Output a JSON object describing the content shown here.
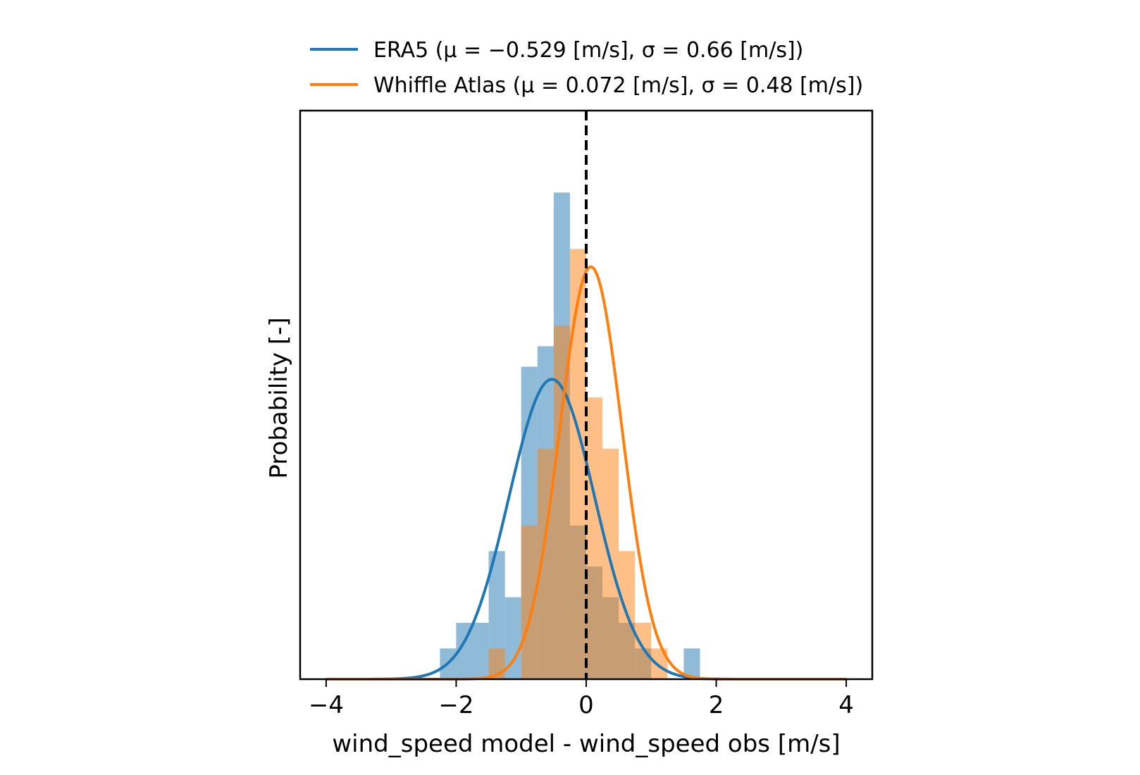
{
  "chart_data": {
    "type": "bar",
    "subtype": "histogram-with-normal-fit",
    "xlabel": "wind_speed model - wind_speed obs [m/s]",
    "ylabel": "Probability [-]",
    "xlim": [
      -4.4,
      4.4
    ],
    "ylim": [
      0,
      1.11
    ],
    "xticks": [
      -4,
      -2,
      0,
      2,
      4
    ],
    "xtick_labels": [
      "−4",
      "−2",
      "0",
      "2",
      "4"
    ],
    "yticks_visible": false,
    "legend_position": "above-plot",
    "reference_line": {
      "x": 0,
      "style": "dashed",
      "color": "#000000"
    },
    "series": [
      {
        "name": "ERA5 (μ = −0.529 [m/s], σ = 0.66 [m/s])",
        "color": "#1f77b4",
        "fill_color": "#1f77b4",
        "fill_opacity": 0.5,
        "fit": {
          "mu": -0.529,
          "sigma": 0.66,
          "curve_range": [
            -4,
            4
          ]
        },
        "bin_edges": [
          -2.25,
          -2.0,
          -1.75,
          -1.5,
          -1.25,
          -1.0,
          -0.75,
          -0.5,
          -0.25,
          0.0,
          0.25,
          0.5,
          0.75,
          1.0,
          1.25,
          1.5,
          1.75
        ],
        "values": [
          0.06,
          0.11,
          0.11,
          0.25,
          0.16,
          0.61,
          0.65,
          0.95,
          0.3,
          0.22,
          0.16,
          0.11,
          0.06,
          0.0,
          0.0,
          0.06
        ]
      },
      {
        "name": "Whiffle Atlas (μ = 0.072 [m/s], σ = 0.48 [m/s])",
        "color": "#ff7f0e",
        "fill_color": "#ff7f0e",
        "fill_opacity": 0.5,
        "fit": {
          "mu": 0.072,
          "sigma": 0.48,
          "curve_range": [
            -4,
            4
          ]
        },
        "bin_edges": [
          -1.5,
          -1.25,
          -1.0,
          -0.75,
          -0.5,
          -0.25,
          0.0,
          0.25,
          0.5,
          0.75,
          1.0,
          1.25
        ],
        "values": [
          0.06,
          0.0,
          0.3,
          0.45,
          0.69,
          0.84,
          0.55,
          0.45,
          0.25,
          0.11,
          0.06
        ]
      }
    ]
  }
}
